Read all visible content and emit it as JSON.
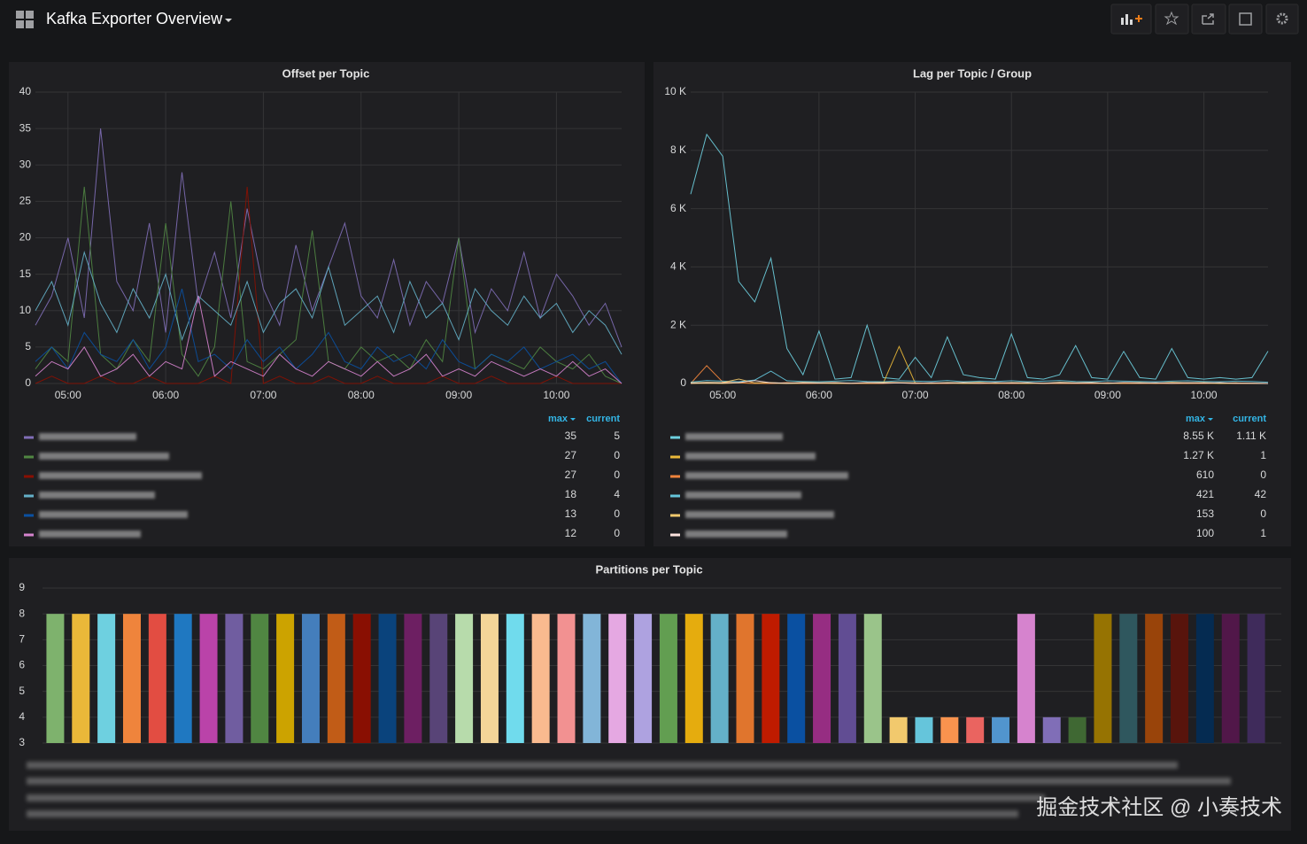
{
  "header": {
    "title": "Kafka Exporter Overview"
  },
  "watermark": "掘金技术社区 @ 小奏技术",
  "chart_data": [
    {
      "type": "line",
      "title": "Offset per Topic",
      "x": [
        "04:40",
        "04:50",
        "05:00",
        "05:10",
        "05:20",
        "05:30",
        "05:40",
        "05:50",
        "06:00",
        "06:10",
        "06:20",
        "06:30",
        "06:40",
        "06:50",
        "07:00",
        "07:10",
        "07:20",
        "07:30",
        "07:40",
        "07:50",
        "08:00",
        "08:10",
        "08:20",
        "08:30",
        "08:40",
        "08:50",
        "09:00",
        "09:10",
        "09:20",
        "09:30",
        "09:40",
        "09:50",
        "10:00",
        "10:10",
        "10:20",
        "10:30",
        "10:40"
      ],
      "xticks": [
        "05:00",
        "06:00",
        "07:00",
        "08:00",
        "09:00",
        "10:00"
      ],
      "ylim": [
        0,
        40
      ],
      "yticks": [
        0,
        5,
        10,
        15,
        20,
        25,
        30,
        35,
        40
      ],
      "grid": true,
      "legend_columns": [
        "max",
        "current"
      ],
      "series": [
        {
          "color": "#806eb7",
          "max": 35,
          "current": 5,
          "values": [
            8,
            12,
            20,
            9,
            35,
            14,
            10,
            22,
            7,
            29,
            11,
            18,
            9,
            24,
            13,
            8,
            19,
            10,
            16,
            22,
            12,
            9,
            17,
            8,
            14,
            11,
            20,
            7,
            13,
            10,
            18,
            9,
            15,
            12,
            8,
            11,
            5
          ]
        },
        {
          "color": "#508642",
          "max": 27,
          "current": 0,
          "values": [
            2,
            5,
            3,
            27,
            4,
            2,
            6,
            3,
            22,
            4,
            1,
            5,
            25,
            3,
            2,
            4,
            6,
            21,
            3,
            2,
            5,
            3,
            4,
            2,
            6,
            3,
            20,
            2,
            4,
            3,
            2,
            5,
            3,
            2,
            4,
            1,
            0
          ]
        },
        {
          "color": "#890f02",
          "max": 27,
          "current": 0,
          "values": [
            0,
            1,
            0,
            0,
            1,
            0,
            0,
            1,
            0,
            0,
            0,
            1,
            0,
            27,
            0,
            1,
            0,
            0,
            1,
            0,
            0,
            1,
            0,
            0,
            0,
            1,
            0,
            0,
            1,
            0,
            0,
            0,
            1,
            0,
            0,
            0,
            0
          ]
        },
        {
          "color": "#64b0c8",
          "max": 18,
          "current": 4,
          "values": [
            10,
            14,
            8,
            18,
            11,
            7,
            13,
            9,
            15,
            6,
            12,
            10,
            8,
            14,
            7,
            11,
            13,
            9,
            16,
            8,
            10,
            12,
            7,
            14,
            9,
            11,
            6,
            13,
            10,
            8,
            12,
            9,
            11,
            7,
            10,
            8,
            4
          ]
        },
        {
          "color": "#0a50a1",
          "max": 13,
          "current": 0,
          "values": [
            3,
            5,
            2,
            7,
            4,
            3,
            6,
            2,
            5,
            13,
            3,
            4,
            2,
            6,
            3,
            5,
            2,
            4,
            7,
            3,
            2,
            5,
            3,
            4,
            2,
            6,
            3,
            2,
            4,
            3,
            5,
            2,
            3,
            4,
            2,
            3,
            0
          ]
        },
        {
          "color": "#d683ce",
          "max": 12,
          "current": 0,
          "values": [
            1,
            3,
            2,
            5,
            1,
            2,
            4,
            1,
            3,
            2,
            12,
            1,
            3,
            2,
            1,
            4,
            2,
            1,
            3,
            2,
            1,
            3,
            1,
            2,
            4,
            1,
            2,
            1,
            3,
            2,
            1,
            2,
            1,
            3,
            1,
            2,
            0
          ]
        }
      ]
    },
    {
      "type": "line",
      "title": "Lag per Topic / Group",
      "x": [
        "04:40",
        "04:50",
        "05:00",
        "05:10",
        "05:20",
        "05:30",
        "05:40",
        "05:50",
        "06:00",
        "06:10",
        "06:20",
        "06:30",
        "06:40",
        "06:50",
        "07:00",
        "07:10",
        "07:20",
        "07:30",
        "07:40",
        "07:50",
        "08:00",
        "08:10",
        "08:20",
        "08:30",
        "08:40",
        "08:50",
        "09:00",
        "09:10",
        "09:20",
        "09:30",
        "09:40",
        "09:50",
        "10:00",
        "10:10",
        "10:20",
        "10:30",
        "10:40"
      ],
      "xticks": [
        "05:00",
        "06:00",
        "07:00",
        "08:00",
        "09:00",
        "10:00"
      ],
      "ylim": [
        0,
        10000
      ],
      "yticks": [
        0,
        {
          "value": 2000,
          "label": "2 K"
        },
        {
          "value": 4000,
          "label": "4 K"
        },
        {
          "value": 6000,
          "label": "6 K"
        },
        {
          "value": 8000,
          "label": "8 K"
        },
        {
          "value": 10000,
          "label": "10 K"
        }
      ],
      "grid": true,
      "legend_columns": [
        "max",
        "current"
      ],
      "series": [
        {
          "color": "#6ed0e0",
          "max": {
            "value": 8550,
            "label": "8.55 K"
          },
          "current": {
            "value": 1110,
            "label": "1.11 K"
          },
          "values": [
            6500,
            8550,
            7800,
            3500,
            2800,
            4300,
            1200,
            300,
            1800,
            150,
            200,
            2000,
            200,
            150,
            900,
            200,
            1600,
            300,
            200,
            150,
            1700,
            200,
            150,
            300,
            1300,
            200,
            150,
            1100,
            200,
            150,
            1200,
            200,
            150,
            200,
            150,
            200,
            1110
          ]
        },
        {
          "color": "#eab839",
          "max": {
            "value": 1270,
            "label": "1.27 K"
          },
          "current": 1,
          "values": [
            0,
            10,
            0,
            20,
            0,
            10,
            0,
            0,
            5,
            0,
            0,
            0,
            0,
            1270,
            10,
            0,
            5,
            0,
            0,
            10,
            0,
            0,
            5,
            0,
            0,
            0,
            10,
            0,
            0,
            5,
            0,
            0,
            10,
            0,
            0,
            0,
            1
          ]
        },
        {
          "color": "#ef843c",
          "max": 610,
          "current": 0,
          "values": [
            0,
            610,
            50,
            20,
            10,
            0,
            30,
            0,
            10,
            20,
            0,
            10,
            0,
            20,
            0,
            10,
            0,
            30,
            0,
            10,
            0,
            20,
            0,
            10,
            0,
            0,
            20,
            0,
            10,
            0,
            0,
            10,
            0,
            20,
            0,
            10,
            0
          ]
        },
        {
          "color": "#65c5db",
          "max": 421,
          "current": 42,
          "values": [
            50,
            100,
            80,
            60,
            120,
            421,
            90,
            70,
            60,
            80,
            100,
            70,
            60,
            90,
            80,
            70,
            100,
            60,
            80,
            70,
            90,
            60,
            80,
            100,
            70,
            60,
            90,
            80,
            70,
            60,
            80,
            90,
            70,
            60,
            80,
            70,
            42
          ]
        },
        {
          "color": "#f2c96d",
          "max": 153,
          "current": 0,
          "values": [
            20,
            40,
            30,
            153,
            20,
            30,
            10,
            40,
            20,
            30,
            10,
            20,
            40,
            30,
            20,
            10,
            30,
            20,
            40,
            10,
            30,
            20,
            10,
            40,
            20,
            30,
            10,
            20,
            30,
            10,
            40,
            20,
            30,
            10,
            20,
            10,
            0
          ]
        },
        {
          "color": "#fce2de",
          "max": 100,
          "current": 1,
          "values": [
            10,
            20,
            15,
            30,
            100,
            20,
            10,
            25,
            15,
            20,
            10,
            30,
            15,
            20,
            10,
            25,
            15,
            20,
            10,
            30,
            15,
            20,
            10,
            25,
            15,
            20,
            10,
            30,
            15,
            20,
            10,
            25,
            15,
            20,
            10,
            5,
            1
          ]
        }
      ]
    },
    {
      "type": "bar",
      "title": "Partitions per Topic",
      "categories": [
        null,
        null,
        null,
        null,
        null,
        null,
        null,
        null,
        null,
        null,
        null,
        null,
        null,
        null,
        null,
        null,
        null,
        null,
        null,
        null,
        null,
        null,
        null,
        null,
        null,
        null,
        null,
        null,
        null,
        null,
        null,
        null,
        null,
        null,
        null,
        null,
        null,
        null,
        null,
        null,
        null,
        null,
        null,
        null,
        null,
        null,
        null,
        null
      ],
      "values": [
        8,
        8,
        8,
        8,
        8,
        8,
        8,
        8,
        8,
        8,
        8,
        8,
        8,
        8,
        8,
        8,
        8,
        8,
        8,
        8,
        8,
        8,
        8,
        8,
        8,
        8,
        8,
        8,
        8,
        8,
        8,
        8,
        8,
        4,
        4,
        4,
        4,
        4,
        8,
        4,
        4,
        8,
        8,
        8,
        8,
        8,
        8,
        8
      ],
      "colors": [
        "#7eb26d",
        "#eab839",
        "#6ed0e0",
        "#ef843c",
        "#e24d42",
        "#1f78c1",
        "#ba43a9",
        "#705da0",
        "#508642",
        "#cca300",
        "#447ebc",
        "#c15c17",
        "#890f02",
        "#0a437c",
        "#6d1f62",
        "#584477",
        "#b7dbab",
        "#f4d598",
        "#70dbed",
        "#f9ba8f",
        "#f29191",
        "#82b5d8",
        "#e5a8e2",
        "#aea2e0",
        "#629e51",
        "#e5ac0e",
        "#64b0c8",
        "#e0752d",
        "#bf1b00",
        "#0a50a1",
        "#962d82",
        "#614d93",
        "#9ac48a",
        "#f2c96d",
        "#65c5db",
        "#f9934e",
        "#ea6460",
        "#5195ce",
        "#d683ce",
        "#806eb7",
        "#3f6833",
        "#967302",
        "#2f575e",
        "#99440a",
        "#58140c",
        "#052b51",
        "#511749",
        "#3f2b5b"
      ],
      "ylim": [
        3,
        9
      ],
      "yticks": [
        3,
        4,
        5,
        6,
        7,
        8,
        9
      ],
      "grid": true
    }
  ]
}
